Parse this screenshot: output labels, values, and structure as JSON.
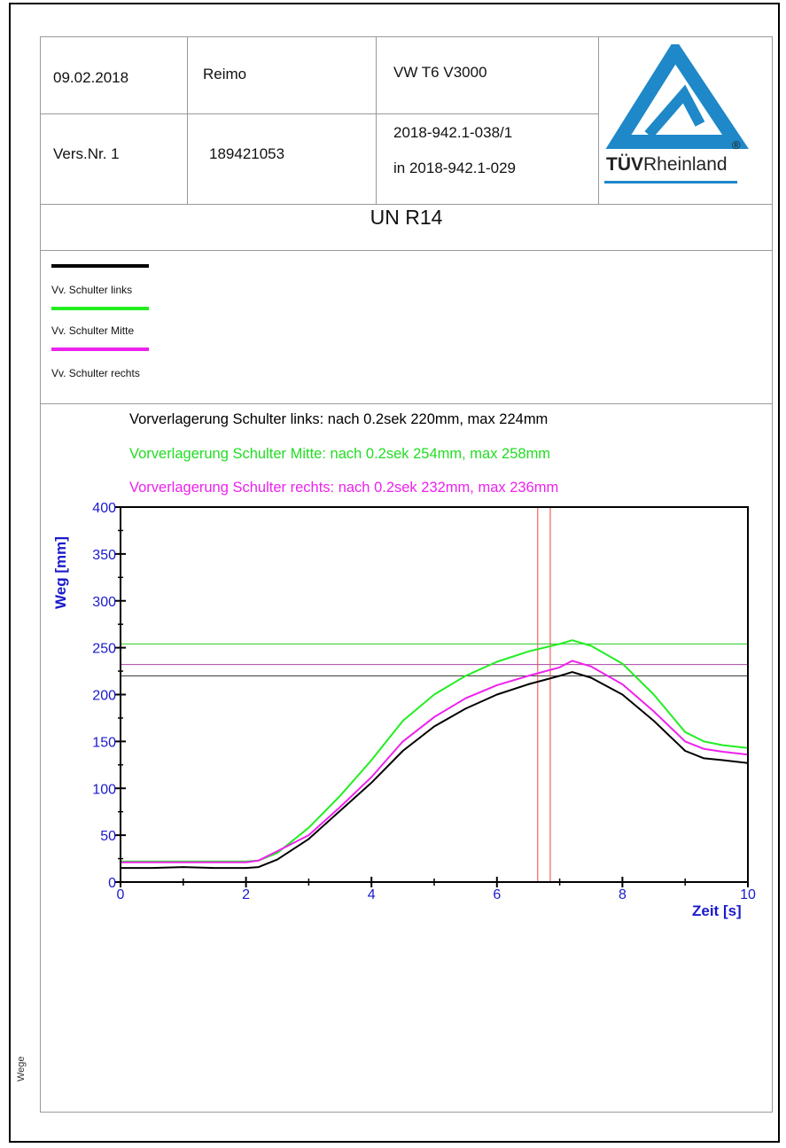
{
  "header": {
    "date": "09.02.2018",
    "company": "Reimo",
    "vehicle": "VW T6  V3000",
    "version": "Vers.Nr. 1",
    "number": "189421053",
    "report_id": "2018-942.1-038/1",
    "report_ref": "in 2018-942.1-029",
    "logo_text_bold": "TÜV",
    "logo_text": "Rheinland",
    "logo_registered": "®"
  },
  "title": "UN R14",
  "legend": [
    {
      "label": "Vv. Schulter links",
      "color": "#000000"
    },
    {
      "label": "Vv. Schulter Mitte",
      "color": "#22ee22"
    },
    {
      "label": "Vv. Schulter rechts",
      "color": "#ee22ee"
    }
  ],
  "stats": [
    {
      "text": "Vorverlagerung Schulter links: nach 0.2sek  220mm, max 224mm",
      "color": "#000000"
    },
    {
      "text": "Vorverlagerung Schulter Mitte: nach 0.2sek  254mm, max 258mm",
      "color": "#22dd22"
    },
    {
      "text": "Vorverlagerung Schulter rechts: nach 0.2sek  232mm, max 236mm",
      "color": "#ee22ee"
    }
  ],
  "side_label": "Wege",
  "colors": {
    "axis_text": "#1a1acc",
    "marker": "#ee4444",
    "frame": "#000000"
  },
  "chart_data": {
    "type": "line",
    "xlabel": "Zeit [s]",
    "ylabel": "Weg [mm]",
    "xlim": [
      0,
      10
    ],
    "ylim": [
      0,
      400
    ],
    "xticks": [
      0,
      2,
      4,
      6,
      8,
      10
    ],
    "yticks": [
      0,
      50,
      100,
      150,
      200,
      250,
      300,
      350,
      400
    ],
    "x": [
      0,
      0.5,
      1.0,
      1.5,
      2.0,
      2.2,
      2.5,
      3.0,
      3.5,
      4.0,
      4.5,
      5.0,
      5.5,
      6.0,
      6.5,
      7.0,
      7.2,
      7.5,
      8.0,
      8.5,
      9.0,
      9.3,
      9.6,
      10.0
    ],
    "series": [
      {
        "name": "Vv. Schulter links",
        "color": "#000000",
        "values": [
          15,
          15,
          16,
          15,
          15,
          16,
          24,
          46,
          76,
          106,
          140,
          166,
          185,
          200,
          211,
          220,
          224,
          218,
          200,
          172,
          140,
          132,
          130,
          127
        ]
      },
      {
        "name": "Vv. Schulter Mitte",
        "color": "#22ee22",
        "values": [
          22,
          22,
          22,
          22,
          22,
          23,
          31,
          58,
          92,
          130,
          172,
          200,
          220,
          235,
          246,
          254,
          258,
          252,
          233,
          200,
          160,
          150,
          146,
          143
        ]
      },
      {
        "name": "Vv. Schulter rechts",
        "color": "#ee22ee",
        "values": [
          21,
          21,
          21,
          21,
          21,
          23,
          33,
          50,
          80,
          112,
          150,
          176,
          196,
          210,
          220,
          229,
          236,
          230,
          211,
          182,
          150,
          142,
          139,
          136
        ]
      }
    ],
    "ref_lines_y": [
      {
        "value": 254,
        "color": "#22cc22"
      },
      {
        "value": 232,
        "color": "#aa44aa"
      },
      {
        "value": 220,
        "color": "#333333"
      }
    ],
    "ref_lines_x": [
      6.65,
      6.85
    ],
    "grid": false
  }
}
